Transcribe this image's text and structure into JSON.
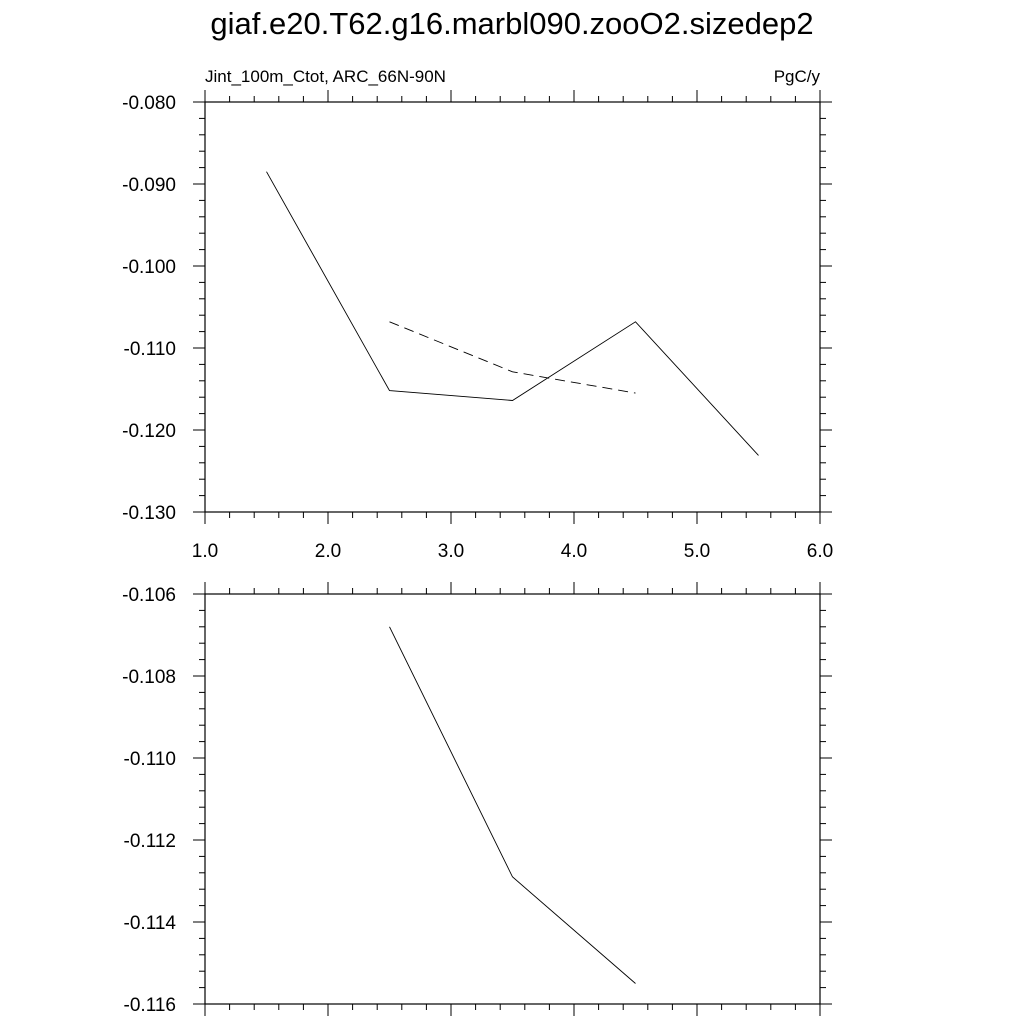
{
  "title": "giaf.e20.T62.g16.marbl090.zooO2.sizedep2",
  "chart_data": [
    {
      "type": "line",
      "left_label": "Jint_100m_Ctot, ARC_66N-90N",
      "right_label": "PgC/y",
      "xlim": [
        1.0,
        6.0
      ],
      "ylim": [
        -0.13,
        -0.08
      ],
      "x_ticks": [
        1.0,
        2.0,
        3.0,
        4.0,
        5.0,
        6.0
      ],
      "x_tick_labels": [
        "1.0",
        "2.0",
        "3.0",
        "4.0",
        "5.0",
        "6.0"
      ],
      "y_ticks": [
        -0.08,
        -0.09,
        -0.1,
        -0.11,
        -0.12,
        -0.13
      ],
      "y_tick_labels": [
        "-0.080",
        "-0.090",
        "-0.100",
        "-0.110",
        "-0.120",
        "-0.130"
      ],
      "series": [
        {
          "style": "solid",
          "x": [
            1.5,
            2.5,
            3.5,
            4.5,
            5.5
          ],
          "y": [
            -0.0885,
            -0.1152,
            -0.1164,
            -0.1068,
            -0.1231
          ]
        },
        {
          "style": "dashed",
          "x": [
            2.5,
            3.5,
            4.5
          ],
          "y": [
            -0.1068,
            -0.1129,
            -0.1155
          ]
        }
      ]
    },
    {
      "type": "line",
      "xlim": [
        1.0,
        6.0
      ],
      "ylim": [
        -0.116,
        -0.106
      ],
      "x_ticks": [
        1.0,
        2.0,
        3.0,
        4.0,
        5.0,
        6.0
      ],
      "y_ticks": [
        -0.106,
        -0.108,
        -0.11,
        -0.112,
        -0.114,
        -0.116
      ],
      "y_tick_labels": [
        "-0.106",
        "-0.108",
        "-0.110",
        "-0.112",
        "-0.114",
        "-0.116"
      ],
      "series": [
        {
          "style": "solid",
          "x": [
            2.5,
            3.5,
            4.5
          ],
          "y": [
            -0.1068,
            -0.1129,
            -0.1155
          ]
        }
      ]
    }
  ]
}
